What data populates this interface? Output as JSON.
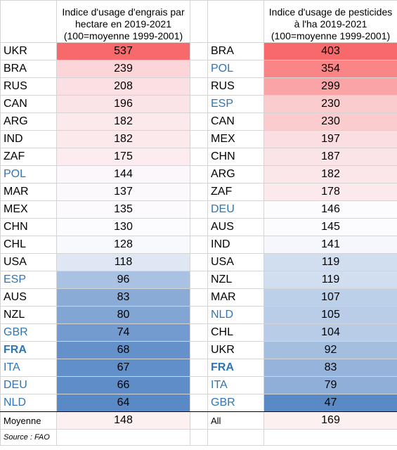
{
  "table": {
    "color_scale": {
      "min": "#5a8ac6",
      "mid": "#fcfcff",
      "max": "#f8696b"
    },
    "left": {
      "header": "Indice d'usage d'engrais par\nhectare en 2019-2021\n(100=moyenne 1999-2001)",
      "rows": [
        {
          "code": "UKR",
          "value": 537
        },
        {
          "code": "BRA",
          "value": 239
        },
        {
          "code": "RUS",
          "value": 208
        },
        {
          "code": "CAN",
          "value": 196
        },
        {
          "code": "ARG",
          "value": 182
        },
        {
          "code": "IND",
          "value": 182
        },
        {
          "code": "ZAF",
          "value": 175
        },
        {
          "code": "POL",
          "value": 144,
          "color": "#2f75b5"
        },
        {
          "code": "MAR",
          "value": 137
        },
        {
          "code": "MEX",
          "value": 135
        },
        {
          "code": "CHN",
          "value": 130
        },
        {
          "code": "CHL",
          "value": 128
        },
        {
          "code": "USA",
          "value": 118
        },
        {
          "code": "ESP",
          "value": 96,
          "color": "#2f75b5"
        },
        {
          "code": "AUS",
          "value": 83
        },
        {
          "code": "NZL",
          "value": 80
        },
        {
          "code": "GBR",
          "value": 74,
          "color": "#2f75b5"
        },
        {
          "code": "FRA",
          "value": 68,
          "color": "#2f75b5",
          "bold": true
        },
        {
          "code": "ITA",
          "value": 67,
          "color": "#2f75b5"
        },
        {
          "code": "DEU",
          "value": 66,
          "color": "#2f75b5"
        },
        {
          "code": "NLD",
          "value": 64,
          "color": "#2f75b5"
        }
      ],
      "footer": {
        "label": "Moyenne",
        "value": 148
      }
    },
    "right": {
      "header": "Indice d'usage de pesticides\nà l'ha 2019-2021\n(100=moyenne 1999-2001)",
      "rows": [
        {
          "code": "BRA",
          "value": 403
        },
        {
          "code": "POL",
          "value": 354,
          "color": "#2f75b5"
        },
        {
          "code": "RUS",
          "value": 299
        },
        {
          "code": "ESP",
          "value": 230,
          "color": "#2f75b5"
        },
        {
          "code": "CAN",
          "value": 230
        },
        {
          "code": "MEX",
          "value": 197
        },
        {
          "code": "CHN",
          "value": 187
        },
        {
          "code": "ARG",
          "value": 182
        },
        {
          "code": "ZAF",
          "value": 178
        },
        {
          "code": "DEU",
          "value": 146,
          "color": "#2f75b5"
        },
        {
          "code": "AUS",
          "value": 145
        },
        {
          "code": "IND",
          "value": 141
        },
        {
          "code": "USA",
          "value": 119
        },
        {
          "code": "NZL",
          "value": 119
        },
        {
          "code": "MAR",
          "value": 107
        },
        {
          "code": "NLD",
          "value": 105,
          "color": "#2f75b5"
        },
        {
          "code": "CHL",
          "value": 104
        },
        {
          "code": "UKR",
          "value": 92
        },
        {
          "code": "FRA",
          "value": 83,
          "color": "#2f75b5",
          "bold": true
        },
        {
          "code": "ITA",
          "value": 79,
          "color": "#2f75b5"
        },
        {
          "code": "GBR",
          "value": 47,
          "color": "#2f75b5"
        }
      ],
      "footer": {
        "label": "All",
        "value": 169
      }
    },
    "source": "Source : FAO"
  }
}
